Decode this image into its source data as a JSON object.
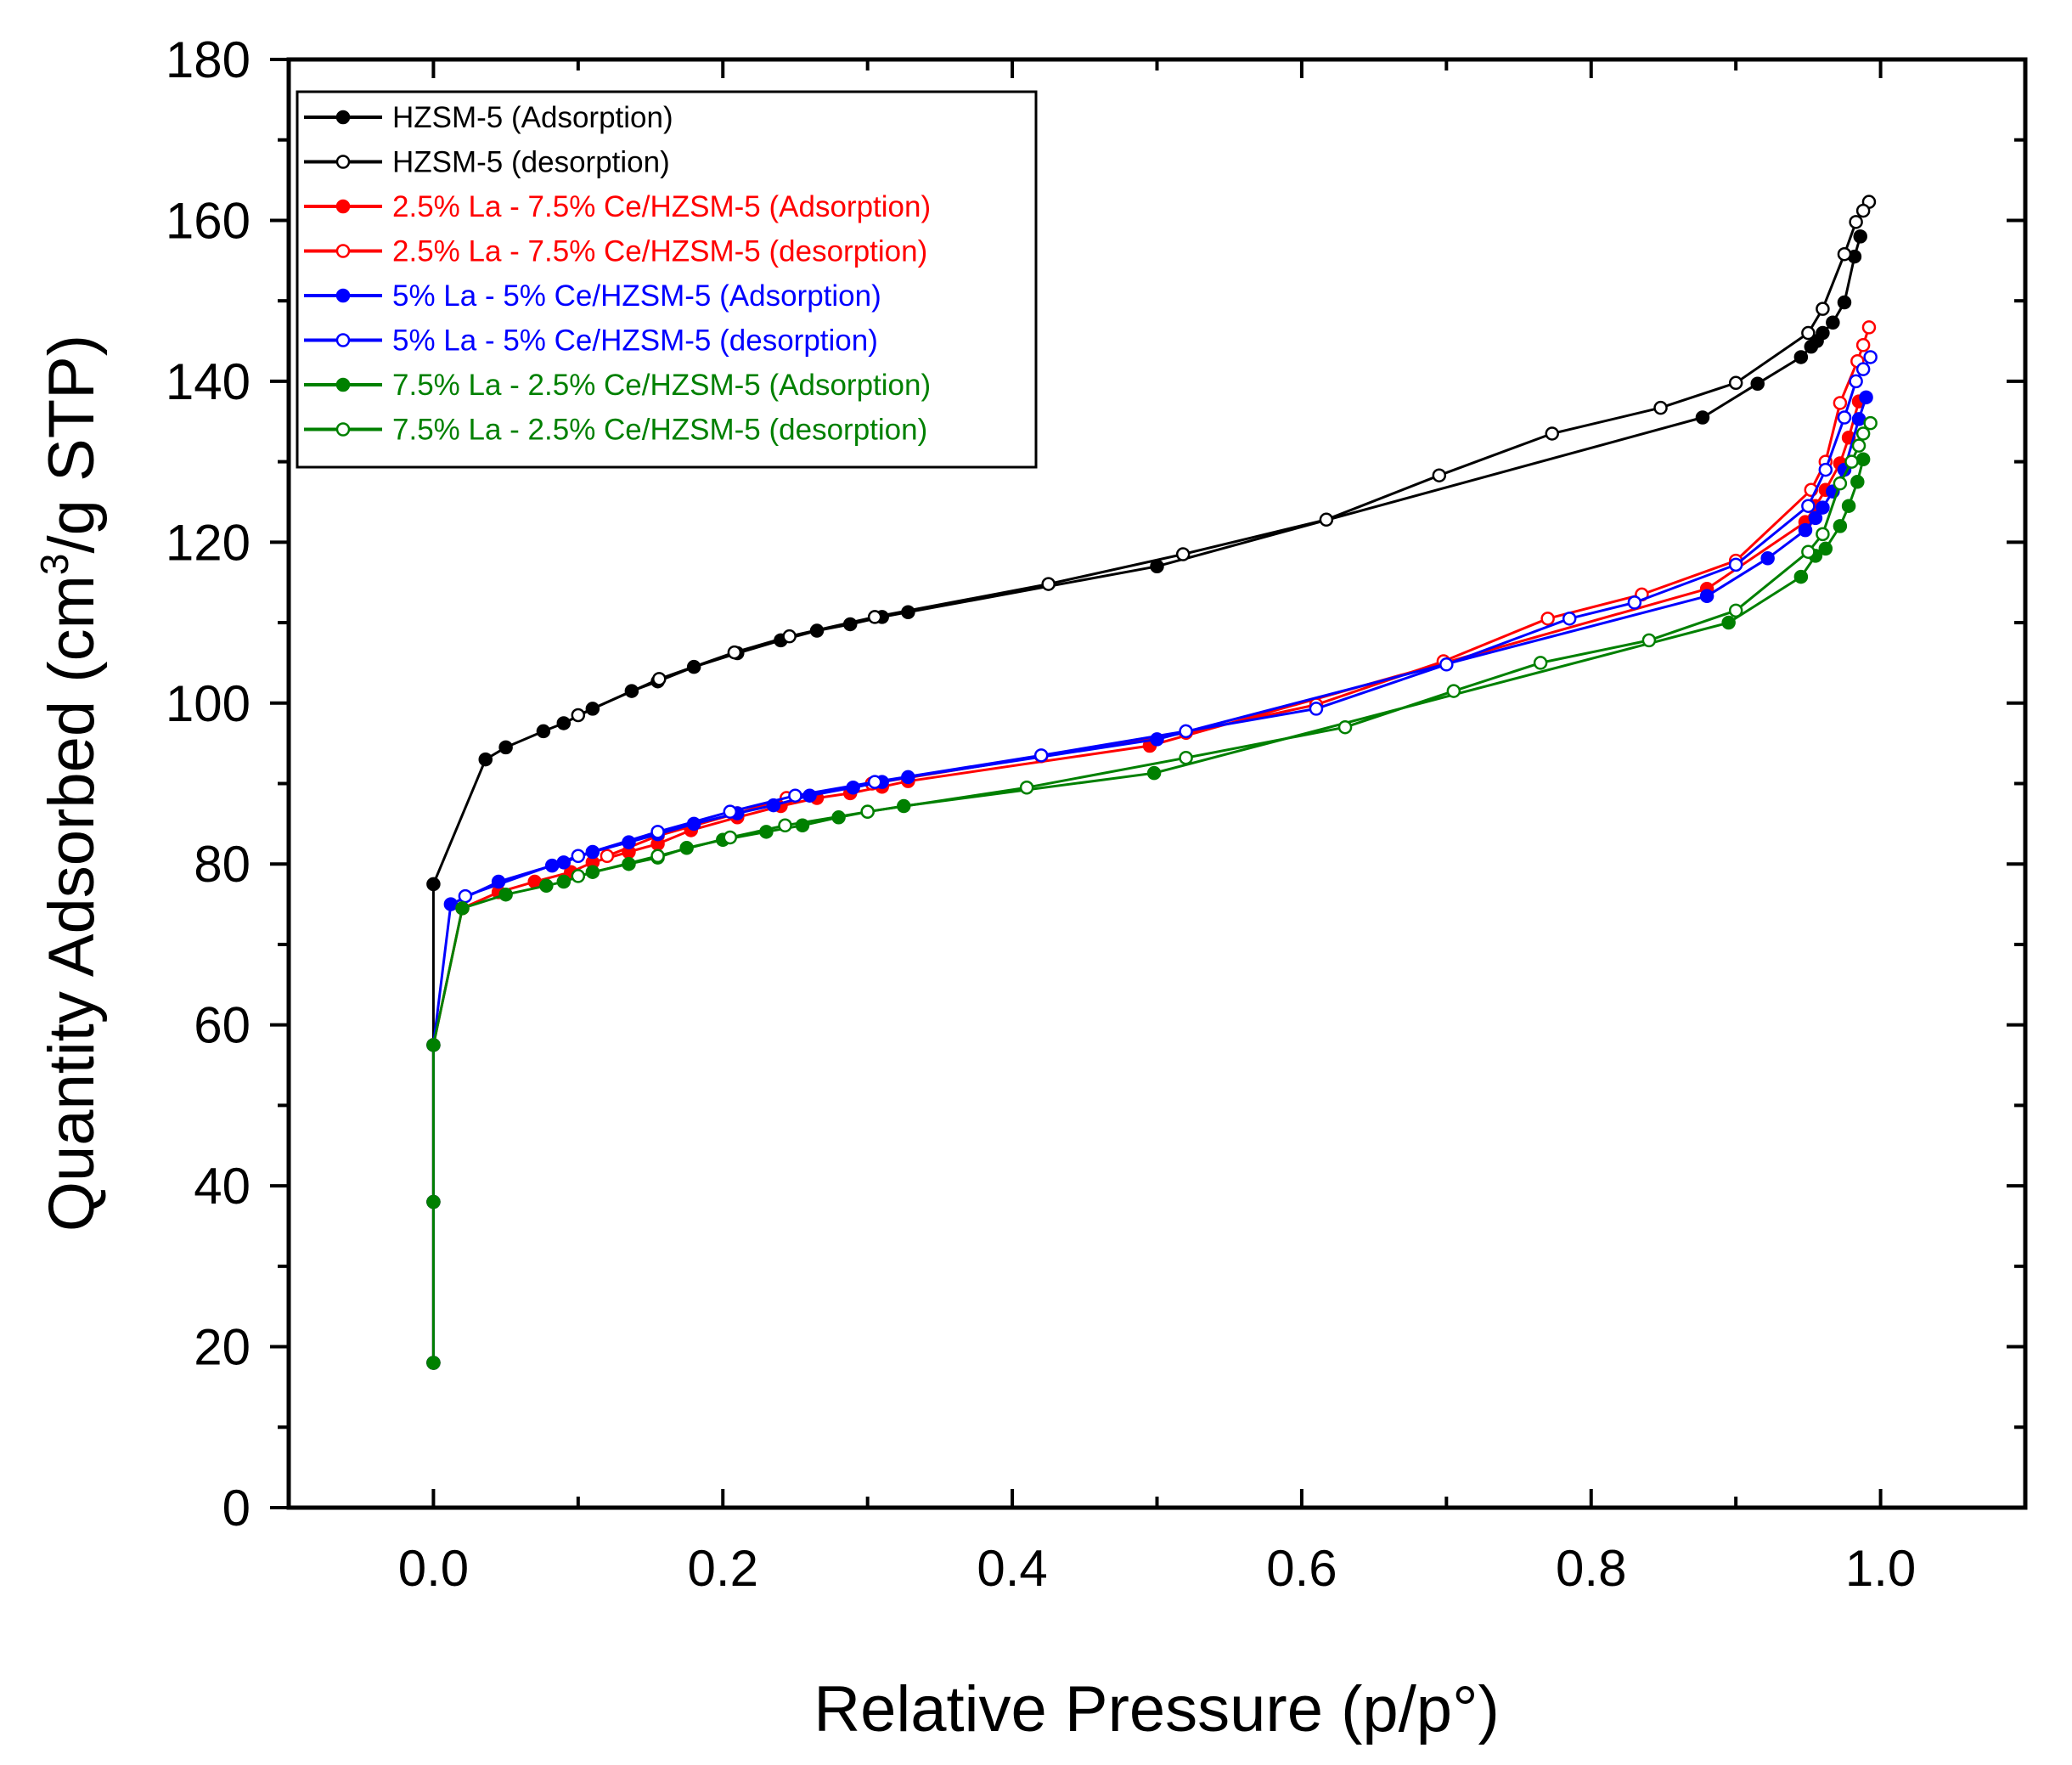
{
  "chart_data": {
    "type": "line",
    "title": "",
    "xlabel": "Relative Pressure (p/p°)",
    "ylabel_parts": [
      "Quantity Adsorbed (cm",
      "3",
      "/g STP)"
    ],
    "xlim": [
      -0.1,
      1.1
    ],
    "ylim": [
      0,
      180
    ],
    "x_ticks": [
      0.0,
      0.2,
      0.4,
      0.6,
      0.8,
      1.0
    ],
    "x_tick_labels": [
      "0.0",
      "0.2",
      "0.4",
      "0.6",
      "0.8",
      "1.0"
    ],
    "y_ticks": [
      0,
      20,
      40,
      60,
      80,
      100,
      120,
      140,
      160,
      180
    ],
    "y_tick_labels": [
      "0",
      "20",
      "40",
      "60",
      "80",
      "100",
      "120",
      "140",
      "160",
      "180"
    ],
    "grid": false,
    "legend_position": "top-left",
    "series": [
      {
        "name": "HZSM-5 (Adsorption)",
        "color": "#000000",
        "marker": "filled",
        "x": [
          0.0,
          0.0,
          0.0,
          0.0,
          0.036,
          0.05,
          0.076,
          0.09,
          0.11,
          0.137,
          0.155,
          0.18,
          0.21,
          0.24,
          0.265,
          0.288,
          0.31,
          0.328,
          0.5,
          0.877,
          0.915,
          0.945,
          0.952,
          0.956,
          0.96,
          0.967,
          0.975,
          0.982,
          0.986
        ],
        "y": [
          18,
          38,
          57.5,
          77.5,
          93,
          94.5,
          96.5,
          97.5,
          99.3,
          101.5,
          102.7,
          104.5,
          106.2,
          107.8,
          109,
          109.8,
          110.7,
          111.3,
          117,
          135.5,
          139.7,
          143,
          144.3,
          145,
          146,
          147.3,
          149.8,
          155.5,
          158
        ]
      },
      {
        "name": "HZSM-5 (desorption)",
        "color": "#000000",
        "marker": "open",
        "x": [
          0.992,
          0.988,
          0.983,
          0.975,
          0.96,
          0.95,
          0.9,
          0.848,
          0.773,
          0.695,
          0.617,
          0.518,
          0.425,
          0.305,
          0.246,
          0.208,
          0.156,
          0.1
        ],
        "y": [
          162.3,
          161.2,
          159.8,
          155.8,
          149,
          146,
          139.8,
          136.7,
          133.5,
          128.3,
          122.8,
          118.5,
          114.8,
          110.7,
          108.3,
          106.3,
          103,
          98.5
        ]
      },
      {
        "name": "2.5% La - 7.5% Ce/HZSM-5 (Adsorption)",
        "color": "#ff0000",
        "marker": "filled",
        "x": [
          0.0,
          0.0,
          0.0,
          0.02,
          0.045,
          0.07,
          0.095,
          0.11,
          0.135,
          0.155,
          0.178,
          0.21,
          0.24,
          0.265,
          0.288,
          0.31,
          0.328,
          0.495,
          0.88,
          0.948,
          0.955,
          0.962,
          0.972,
          0.978,
          0.985
        ],
        "y": [
          18,
          38,
          57.5,
          74.5,
          76.5,
          77.8,
          79,
          80.2,
          81.5,
          82.5,
          84.2,
          85.8,
          87.2,
          88.2,
          88.8,
          89.6,
          90.3,
          94.7,
          114.2,
          122.5,
          124.5,
          126.5,
          129.8,
          133,
          137.5
        ]
      },
      {
        "name": "2.5% La - 7.5% Ce/HZSM-5 (desorption)",
        "color": "#ff0000",
        "marker": "open",
        "x": [
          0.992,
          0.988,
          0.984,
          0.972,
          0.962,
          0.952,
          0.9,
          0.835,
          0.77,
          0.698,
          0.61,
          0.52,
          0.42,
          0.303,
          0.244,
          0.21,
          0.155,
          0.12
        ],
        "y": [
          146.7,
          144.5,
          142.5,
          137.3,
          130,
          126.5,
          117.7,
          113.5,
          110.5,
          105.2,
          99.8,
          96.3,
          93.4,
          90,
          88.2,
          86.3,
          83.5,
          81
        ]
      },
      {
        "name": "5% La - 5% Ce/HZSM-5 (Adsorption)",
        "color": "#0000ff",
        "marker": "filled",
        "x": [
          0.0,
          0.0,
          0.0,
          0.012,
          0.045,
          0.082,
          0.09,
          0.11,
          0.135,
          0.155,
          0.18,
          0.21,
          0.235,
          0.26,
          0.29,
          0.31,
          0.328,
          0.5,
          0.88,
          0.922,
          0.948,
          0.955,
          0.96,
          0.967,
          0.975,
          0.985,
          0.99
        ],
        "y": [
          18,
          38,
          57.5,
          75,
          77.8,
          79.8,
          80.2,
          81.5,
          82.7,
          83.7,
          85,
          86.3,
          87.3,
          88.5,
          89.5,
          90.2,
          90.8,
          95.5,
          113.3,
          118,
          121.5,
          123,
          124.3,
          126.3,
          129,
          135.3,
          138
        ]
      },
      {
        "name": "5% La - 5% Ce/HZSM-5 (desorption)",
        "color": "#0000ff",
        "marker": "open",
        "x": [
          0.993,
          0.988,
          0.983,
          0.975,
          0.962,
          0.95,
          0.9,
          0.83,
          0.785,
          0.7,
          0.61,
          0.52,
          0.42,
          0.305,
          0.25,
          0.205,
          0.155,
          0.1,
          0.022
        ],
        "y": [
          143,
          141.5,
          140,
          135.5,
          129,
          124.5,
          117.2,
          112.5,
          110.5,
          104.8,
          99.3,
          96.5,
          93.5,
          90.2,
          88.5,
          86.5,
          84,
          81,
          76
        ]
      },
      {
        "name": "7.5% La - 2.5% Ce/HZSM-5 (Adsorption)",
        "color": "#008000",
        "marker": "filled",
        "x": [
          0.0,
          0.0,
          0.0,
          0.02,
          0.05,
          0.078,
          0.09,
          0.11,
          0.135,
          0.155,
          0.175,
          0.2,
          0.23,
          0.255,
          0.28,
          0.3,
          0.325,
          0.498,
          0.895,
          0.945,
          0.955,
          0.962,
          0.972,
          0.978,
          0.984,
          0.988
        ],
        "y": [
          18,
          38,
          57.5,
          74.5,
          76.2,
          77.3,
          77.8,
          79,
          80,
          80.8,
          82,
          83,
          84,
          84.8,
          85.8,
          86.5,
          87.2,
          91.3,
          110,
          115.7,
          118.3,
          119.2,
          122,
          124.5,
          127.5,
          130.3
        ]
      },
      {
        "name": "7.5% La - 2.5% Ce/HZSM-5 (desorption)",
        "color": "#008000",
        "marker": "open",
        "x": [
          0.993,
          0.988,
          0.985,
          0.98,
          0.972,
          0.96,
          0.95,
          0.9,
          0.84,
          0.765,
          0.705,
          0.63,
          0.52,
          0.41,
          0.3,
          0.243,
          0.205,
          0.155,
          0.1
        ],
        "y": [
          134.8,
          133.5,
          132,
          130,
          127.3,
          121,
          118.8,
          111.5,
          107.8,
          105,
          101.5,
          97,
          93.2,
          89.5,
          86.5,
          84.8,
          83.3,
          81,
          78.5
        ]
      }
    ]
  }
}
